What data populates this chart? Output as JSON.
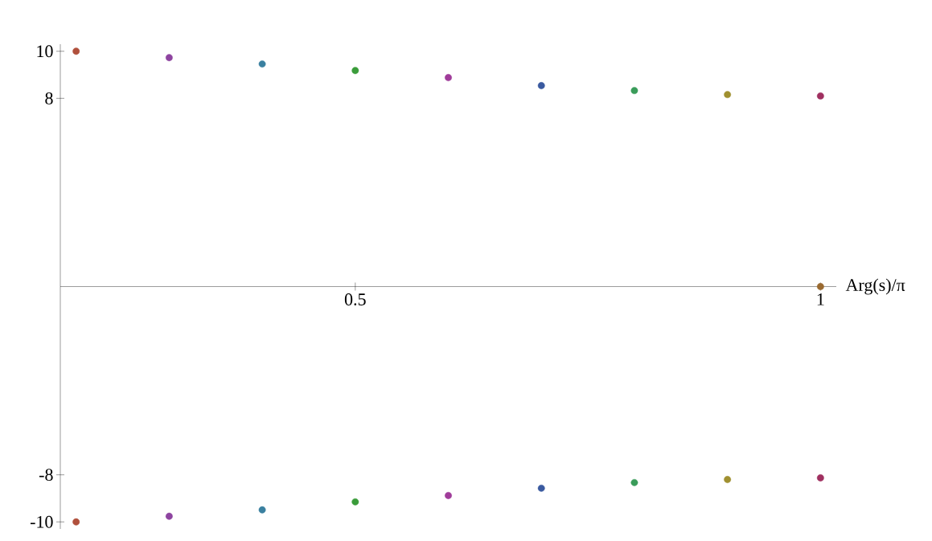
{
  "chart_data": {
    "type": "scatter",
    "xlabel": "Arg(s)/π",
    "marker": "circle",
    "x": [
      0.2,
      0.3,
      0.4,
      0.5,
      0.6,
      0.7,
      0.8,
      0.9,
      1.0,
      0.2,
      0.3,
      0.4,
      0.5,
      0.6,
      0.7,
      0.8,
      0.9,
      1.0,
      1.0
    ],
    "values": [
      10.0,
      9.73,
      9.46,
      9.18,
      8.88,
      8.54,
      8.33,
      8.16,
      8.1,
      -10.0,
      -9.76,
      -9.49,
      -9.15,
      -8.88,
      -8.57,
      -8.33,
      -8.2,
      -8.13,
      0
    ],
    "colors": [
      "#b0503c",
      "#8e44a0",
      "#3a80a0",
      "#3a9c3a",
      "#a03c9a",
      "#3a5aa0",
      "#3a9c5a",
      "#a09030",
      "#a03060",
      "#b0503c",
      "#8e44a0",
      "#3a80a0",
      "#3a9c3a",
      "#a03c9a",
      "#3a5aa0",
      "#3a9c5a",
      "#a09030",
      "#a03060",
      "#9a6a30"
    ],
    "xlim": [
      0.183,
      1.017
    ],
    "ylim": [
      -10.3,
      10.3
    ],
    "xticks": [
      0.5,
      1
    ],
    "yticks": [
      -10,
      -8,
      8,
      10
    ]
  }
}
